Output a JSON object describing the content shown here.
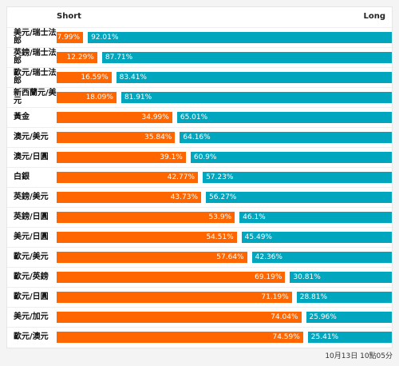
{
  "chart_data": {
    "type": "bar",
    "stacked": true,
    "orientation": "horizontal",
    "column_headers": {
      "short": "Short",
      "long": "Long"
    },
    "categories": [
      "美元/瑞士法郎",
      "英鎊/瑞士法郎",
      "歐元/瑞士法郎",
      "新西蘭元/美元",
      "黃金",
      "澳元/美元",
      "澳元/日圓",
      "白銀",
      "英鎊/美元",
      "英鎊/日圓",
      "美元/日圓",
      "歐元/美元",
      "歐元/英鎊",
      "歐元/日圓",
      "美元/加元",
      "歐元/澳元"
    ],
    "series": [
      {
        "name": "Short",
        "values": [
          7.99,
          12.29,
          16.59,
          18.09,
          34.99,
          35.84,
          39.1,
          42.77,
          43.73,
          53.9,
          54.51,
          57.64,
          69.19,
          71.19,
          74.04,
          74.59
        ],
        "labels": [
          "7.99%",
          "12.29%",
          "16.59%",
          "18.09%",
          "34.99%",
          "35.84%",
          "39.1%",
          "42.77%",
          "43.73%",
          "53.9%",
          "54.51%",
          "57.64%",
          "69.19%",
          "71.19%",
          "74.04%",
          "74.59%"
        ]
      },
      {
        "name": "Long",
        "values": [
          92.01,
          87.71,
          83.41,
          81.91,
          65.01,
          64.16,
          60.9,
          57.23,
          56.27,
          46.1,
          45.49,
          42.36,
          30.81,
          28.81,
          25.96,
          25.41
        ],
        "labels": [
          "92.01%",
          "87.71%",
          "83.41%",
          "81.91%",
          "65.01%",
          "64.16%",
          "60.9%",
          "57.23%",
          "56.27%",
          "46.1%",
          "45.49%",
          "42.36%",
          "30.81%",
          "28.81%",
          "25.96%",
          "25.41%"
        ]
      }
    ],
    "xlim": [
      0,
      100
    ],
    "colors": {
      "short": "#ff6600",
      "long": "#00a5be"
    },
    "grid": false,
    "legend": "none"
  },
  "footer": {
    "timestamp": "10月13日 10點05分"
  }
}
